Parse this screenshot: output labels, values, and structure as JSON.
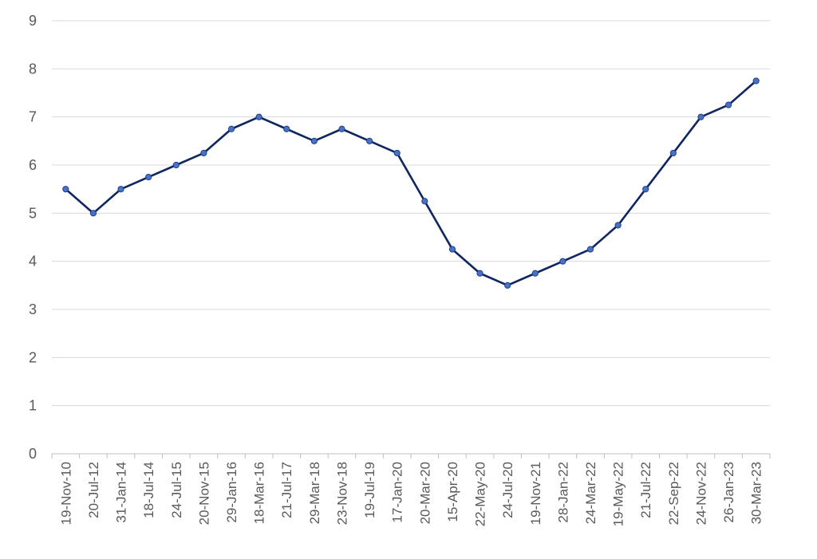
{
  "chart_data": {
    "type": "line",
    "title": "",
    "xlabel": "",
    "ylabel": "",
    "ylim": [
      0,
      9
    ],
    "yticks": [
      0,
      1,
      2,
      3,
      4,
      5,
      6,
      7,
      8,
      9
    ],
    "grid": true,
    "legend": "none",
    "colors": {
      "line": "#0f2660",
      "marker_fill": "#4a72c4",
      "marker_stroke": "#1f3f8a",
      "grid": "#d9d9d9",
      "axis": "#bfbfbf",
      "tick_label": "#595959"
    },
    "categories": [
      "19-Nov-10",
      "20-Jul-12",
      "31-Jan-14",
      "18-Jul-14",
      "24-Jul-15",
      "20-Nov-15",
      "29-Jan-16",
      "18-Mar-16",
      "21-Jul-17",
      "29-Mar-18",
      "23-Nov-18",
      "19-Jul-19",
      "17-Jan-20",
      "20-Mar-20",
      "15-Apr-20",
      "22-May-20",
      "24-Jul-20",
      "19-Nov-21",
      "28-Jan-22",
      "24-Mar-22",
      "19-May-22",
      "21-Jul-22",
      "22-Sep-22",
      "24-Nov-22",
      "26-Jan-23",
      "30-Mar-23"
    ],
    "series": [
      {
        "values": [
          5.5,
          5.0,
          5.5,
          5.75,
          6.0,
          6.25,
          6.75,
          7.0,
          6.75,
          6.5,
          6.75,
          6.5,
          6.25,
          5.25,
          4.25,
          3.75,
          3.5,
          3.75,
          4.0,
          4.25,
          4.75,
          5.5,
          6.25,
          7.0,
          7.25,
          7.75
        ]
      }
    ]
  }
}
